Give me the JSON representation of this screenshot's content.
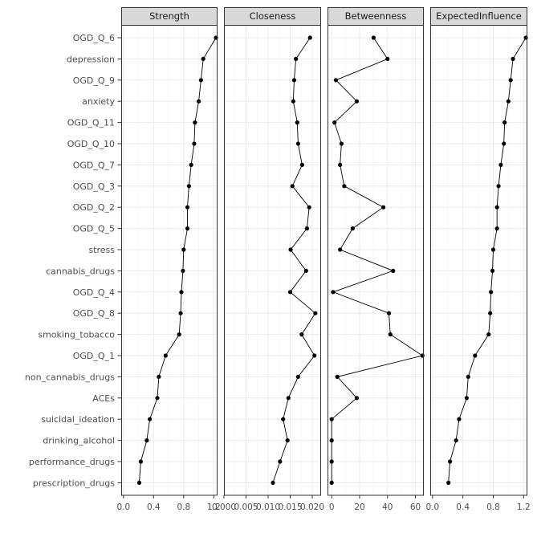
{
  "chart_data": {
    "type": "line",
    "orientation": "horizontal",
    "grid": true,
    "nodes": [
      "OGD_Q_6",
      "depression",
      "OGD_Q_9",
      "anxiety",
      "OGD_Q_11",
      "OGD_Q_10",
      "OGD_Q_7",
      "OGD_Q_3",
      "OGD_Q_2",
      "OGD_Q_5",
      "stress",
      "cannabis_drugs",
      "OGD_Q_4",
      "OGD_Q_8",
      "smoking_tobacco",
      "OGD_Q_1",
      "non_cannabis_drugs",
      "ACEs",
      "suicidal_ideation",
      "drinking_alcohol",
      "performance_drugs",
      "prescription_drugs"
    ],
    "panels": [
      {
        "name": "Strength",
        "xlim": [
          -0.03,
          1.25
        ],
        "ticks": [
          0.0,
          0.4,
          0.8,
          1.2
        ],
        "tick_labels": [
          "0.0",
          "0.4",
          "0.8",
          "1.2"
        ],
        "values": [
          1.23,
          1.06,
          1.03,
          1.0,
          0.95,
          0.94,
          0.9,
          0.87,
          0.85,
          0.85,
          0.8,
          0.79,
          0.77,
          0.76,
          0.74,
          0.56,
          0.47,
          0.45,
          0.35,
          0.31,
          0.23,
          0.21
        ]
      },
      {
        "name": "Closeness",
        "xlim": [
          0.0,
          0.022
        ],
        "ticks": [
          0.0,
          0.005,
          0.01,
          0.015,
          0.02
        ],
        "tick_labels": [
          "0.000",
          "0.005",
          "0.010",
          "0.015",
          "0.020"
        ],
        "values": [
          0.0195,
          0.0163,
          0.0159,
          0.0157,
          0.0166,
          0.0168,
          0.0177,
          0.0155,
          0.0193,
          0.0188,
          0.0151,
          0.0186,
          0.015,
          0.0207,
          0.0176,
          0.0205,
          0.0168,
          0.0146,
          0.0134,
          0.0144,
          0.0127,
          0.0111
        ]
      },
      {
        "name": "Betweenness",
        "xlim": [
          -3,
          66
        ],
        "ticks": [
          0,
          20,
          40,
          60
        ],
        "tick_labels": [
          "0",
          "20",
          "40",
          "60"
        ],
        "values": [
          30,
          40,
          3,
          18,
          2,
          7,
          6,
          9,
          37,
          15,
          6,
          44,
          1,
          41,
          42,
          65,
          4,
          18,
          0,
          0,
          0,
          0
        ]
      },
      {
        "name": "ExpectedInfluence",
        "xlim": [
          -0.03,
          1.25
        ],
        "ticks": [
          0.0,
          0.4,
          0.8,
          1.2
        ],
        "tick_labels": [
          "0.0",
          "0.4",
          "0.8",
          "1.2"
        ],
        "values": [
          1.23,
          1.06,
          1.03,
          1.0,
          0.95,
          0.94,
          0.9,
          0.87,
          0.85,
          0.85,
          0.8,
          0.79,
          0.77,
          0.76,
          0.74,
          0.56,
          0.47,
          0.45,
          0.35,
          0.31,
          0.23,
          0.21
        ]
      }
    ]
  },
  "colors": {
    "strip_fill": "#d9d9d9",
    "strip_border": "#333333",
    "panel_border": "#333333",
    "grid_major": "#ebebeb",
    "grid_minor": "#f5f5f5",
    "line": "#000000",
    "point": "#000000",
    "text": "#4d4d4d"
  }
}
